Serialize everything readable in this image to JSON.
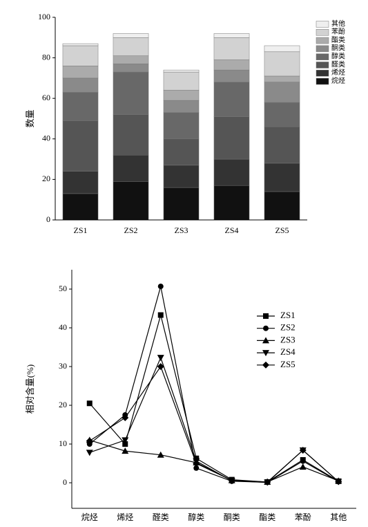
{
  "chart_data": [
    {
      "type": "stacked_bar",
      "ylabel": "数量",
      "categories": [
        "ZS1",
        "ZS2",
        "ZS3",
        "ZS4",
        "ZS5"
      ],
      "series": [
        {
          "name": "烷烃",
          "color": "#111111",
          "values": [
            13,
            19,
            16,
            17,
            14
          ]
        },
        {
          "name": "烯烃",
          "color": "#333333",
          "values": [
            11,
            13,
            11,
            13,
            14
          ]
        },
        {
          "name": "醛类",
          "color": "#555555",
          "values": [
            25,
            20,
            13,
            21,
            18
          ]
        },
        {
          "name": "醇类",
          "color": "#686868",
          "values": [
            14,
            21,
            13,
            17,
            12
          ]
        },
        {
          "name": "酮类",
          "color": "#8a8a8a",
          "values": [
            7,
            4,
            6,
            6,
            10
          ]
        },
        {
          "name": "酯类",
          "color": "#ababab",
          "values": [
            6,
            4,
            5,
            5,
            3
          ]
        },
        {
          "name": "苯酚",
          "color": "#d2d2d2",
          "values": [
            10,
            9,
            9,
            11,
            12
          ]
        },
        {
          "name": "其他",
          "color": "#efefef",
          "values": [
            1,
            2,
            1,
            2,
            3
          ]
        }
      ],
      "ylim": [
        0,
        100
      ],
      "yticks": [
        0,
        20,
        40,
        60,
        80,
        100
      ],
      "legend": "upper-right"
    },
    {
      "type": "line",
      "ylabel": "相对含量(%)",
      "categories": [
        "烷烃",
        "烯烃",
        "醛类",
        "醇类",
        "酮类",
        "酯类",
        "苯酚",
        "其他"
      ],
      "series": [
        {
          "name": "ZS1",
          "color": "#000000",
          "marker": "square",
          "values": [
            20.5,
            10,
            43.3,
            6.3,
            0.8,
            0.2,
            5.9,
            0.4
          ]
        },
        {
          "name": "ZS2",
          "color": "#000000",
          "marker": "circle",
          "values": [
            10,
            17.5,
            50.7,
            3.8,
            0.4,
            0.1,
            5.6,
            0.3
          ]
        },
        {
          "name": "ZS3",
          "color": "#000000",
          "marker": "triangle-up",
          "values": [
            11,
            8.2,
            7.2,
            5.2,
            0.6,
            0.2,
            4.1,
            0.5
          ]
        },
        {
          "name": "ZS4",
          "color": "#000000",
          "marker": "triangle-down",
          "values": [
            7.8,
            11,
            32.3,
            5.6,
            0.5,
            0.1,
            8.4,
            0.3
          ]
        },
        {
          "name": "ZS5",
          "color": "#000000",
          "marker": "diamond",
          "values": [
            10.8,
            16.8,
            30,
            5,
            0.6,
            0.2,
            8.4,
            0.3
          ]
        }
      ],
      "ylim": [
        -6.6,
        55
      ],
      "yticks": [
        0,
        10,
        20,
        30,
        40,
        50
      ],
      "legend": "upper-right"
    }
  ]
}
